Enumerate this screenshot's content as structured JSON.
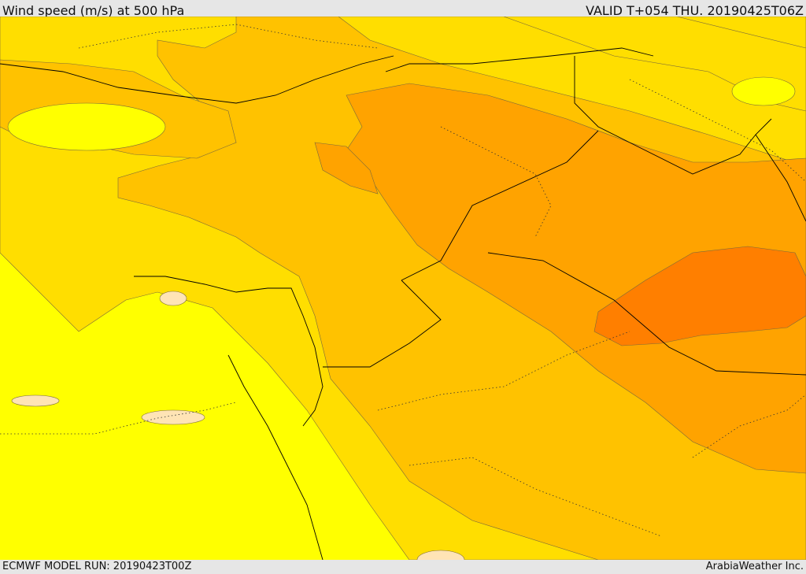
{
  "header": {
    "title": "Wind speed (m/s) at 500 hPa",
    "valid": "VALID T+054 THU. 20190425T06Z"
  },
  "footer": {
    "model_run": "ECMWF MODEL RUN: 20190423T00Z",
    "credit": "ArabiaWeather Inc."
  },
  "map": {
    "field": "wind speed at 500 hPa",
    "fill_colors": [
      "#ffe4b5",
      "#ffff00",
      "#ffde00",
      "#ffc200",
      "#ffa300",
      "#ff7f00"
    ],
    "border_color": "#000000"
  }
}
